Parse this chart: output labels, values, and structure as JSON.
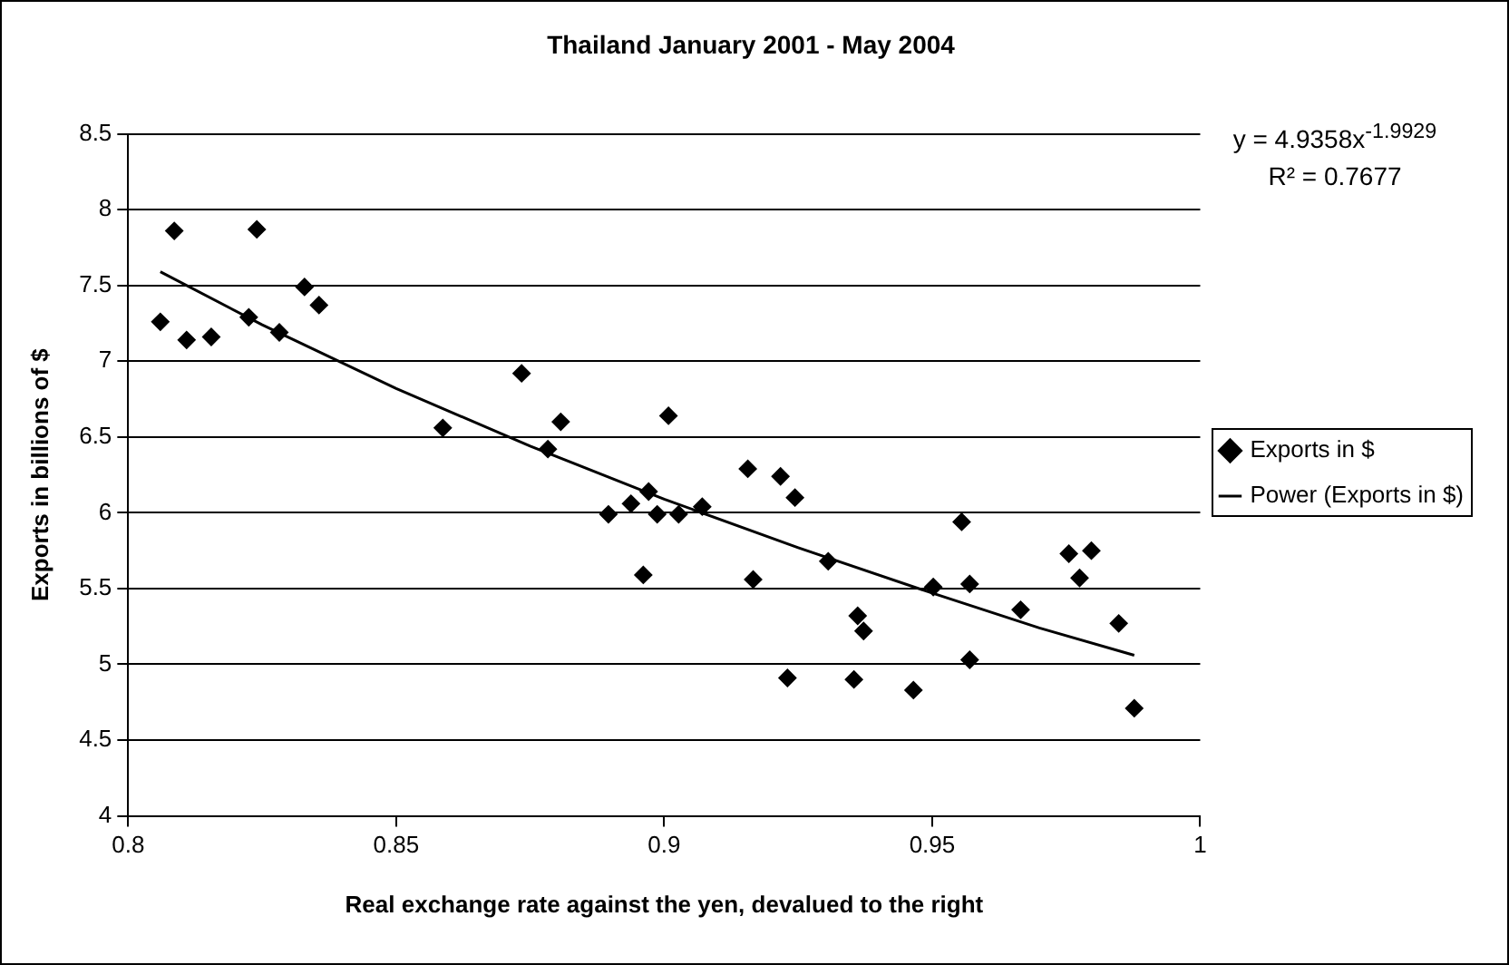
{
  "chart_data": {
    "type": "scatter",
    "title": "Thailand January 2001 - May 2004",
    "xlabel": "Real exchange rate against the yen, devalued to the right",
    "ylabel": "Exports in billions of $",
    "annotations": [
      "y = 4.9358x$^{-1.9929}$",
      "R² = 0.7677"
    ],
    "xlim": [
      0.8,
      1
    ],
    "xticks": [
      0.8,
      0.85,
      0.9,
      0.95,
      1
    ],
    "ylim": [
      4,
      8.5
    ],
    "yticks": [
      4,
      4.5,
      5,
      5.5,
      6,
      6.5,
      7,
      7.5,
      8,
      8.5
    ],
    "grid": "y",
    "legend": "right",
    "marker": "diamond",
    "series": [
      {
        "name": "Exports in $",
        "color": "#000000",
        "x": [
          0.806,
          0.8086,
          0.8109,
          0.8155,
          0.824,
          0.8225,
          0.8282,
          0.8329,
          0.8356,
          0.8587,
          0.8734,
          0.8783,
          0.8807,
          0.8896,
          0.8938,
          0.8971,
          0.8987,
          0.8961,
          0.9008,
          0.9027,
          0.9071,
          0.9156,
          0.9217,
          0.9244,
          0.9166,
          0.9306,
          0.923,
          0.9361,
          0.9372,
          0.9354,
          0.9465,
          0.9502,
          0.9555,
          0.957,
          0.957,
          0.9665,
          0.9755,
          0.9797,
          0.9775,
          0.9848,
          0.9877
        ],
        "values": [
          7.26,
          7.86,
          7.14,
          7.16,
          7.87,
          7.29,
          7.19,
          7.49,
          7.37,
          6.56,
          6.92,
          6.42,
          6.6,
          5.99,
          6.06,
          6.14,
          5.99,
          5.59,
          6.64,
          5.99,
          6.04,
          6.29,
          6.24,
          6.1,
          5.56,
          5.68,
          4.91,
          5.32,
          5.22,
          4.9,
          4.83,
          5.51,
          5.94,
          5.53,
          5.03,
          5.36,
          5.73,
          5.75,
          5.57,
          5.27,
          4.71
        ]
      },
      {
        "name": "Power (Exports in $)",
        "type": "line",
        "color": "#000000",
        "marker": "none",
        "x": [
          0.806,
          0.825,
          0.85,
          0.875,
          0.9,
          0.925,
          0.95,
          0.97,
          0.9877
        ],
        "values": [
          7.59,
          7.24,
          6.82,
          6.44,
          6.09,
          5.77,
          5.47,
          5.24,
          5.06
        ]
      }
    ]
  }
}
